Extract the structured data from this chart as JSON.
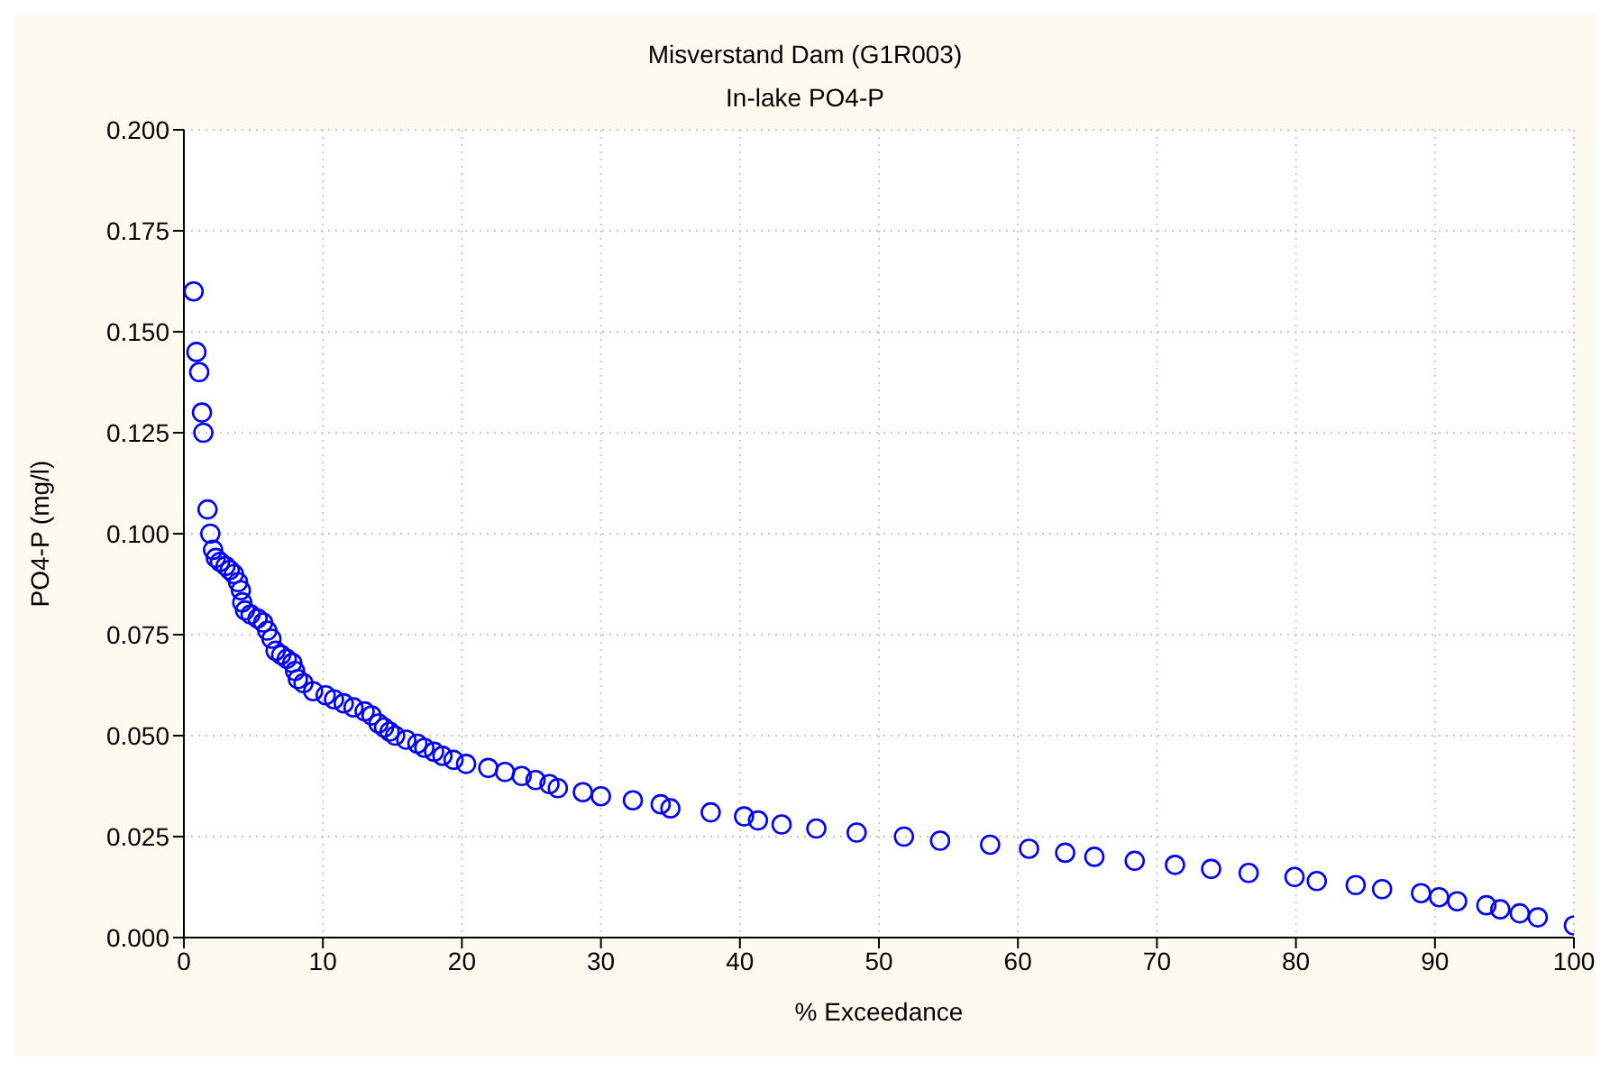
{
  "chart_data": {
    "type": "scatter",
    "title": "Misverstand Dam (G1R003)",
    "subtitle": "In-lake PO4-P",
    "xlabel": "% Exceedance",
    "ylabel": "PO4-P (mg/l)",
    "xlim": [
      0,
      100
    ],
    "xticks": [
      0,
      10,
      20,
      30,
      40,
      50,
      60,
      70,
      80,
      90,
      100
    ],
    "ylim": [
      0,
      0.2
    ],
    "yticks": [
      {
        "value": 0,
        "label": "0.000"
      },
      {
        "value": 0.025,
        "label": "0.025"
      },
      {
        "value": 0.05,
        "label": "0.050"
      },
      {
        "value": 0.075,
        "label": "0.075"
      },
      {
        "value": 0.1,
        "label": "0.100"
      },
      {
        "value": 0.125,
        "label": "0.125"
      },
      {
        "value": 0.15,
        "label": "0.150"
      },
      {
        "value": 0.175,
        "label": "0.175"
      },
      {
        "value": 0.2,
        "label": "0.200"
      }
    ],
    "grid": true,
    "marker": "circle",
    "series": [
      {
        "color": "#0000ff",
        "x": [
          0.7,
          0.9,
          1.1,
          1.3,
          1.4,
          1.7,
          1.9,
          2.1,
          2.3,
          2.6,
          3.0,
          3.3,
          3.6,
          3.9,
          4.1,
          4.2,
          4.4,
          4.8,
          5.3,
          5.7,
          6.0,
          6.3,
          6.6,
          7.0,
          7.4,
          7.8,
          8.0,
          8.2,
          8.6,
          9.3,
          10.2,
          10.8,
          11.5,
          12.2,
          13.0,
          13.5,
          14.0,
          14.4,
          14.8,
          15.2,
          16.0,
          16.8,
          17.3,
          18.0,
          18.6,
          19.4,
          20.3,
          21.9,
          23.1,
          24.3,
          25.3,
          26.3,
          26.9,
          28.7,
          30.0,
          32.3,
          34.3,
          35.0,
          37.9,
          40.3,
          41.3,
          43.0,
          45.5,
          48.4,
          51.8,
          54.4,
          58.0,
          60.8,
          63.4,
          65.5,
          68.4,
          71.3,
          73.9,
          76.6,
          79.9,
          81.5,
          84.3,
          86.2,
          89.0,
          90.3,
          91.6,
          93.7,
          94.7,
          96.1,
          97.4,
          100
        ],
        "values": [
          0.16,
          0.145,
          0.14,
          0.13,
          0.125,
          0.106,
          0.1,
          0.096,
          0.094,
          0.093,
          0.092,
          0.091,
          0.09,
          0.088,
          0.086,
          0.083,
          0.081,
          0.08,
          0.079,
          0.078,
          0.076,
          0.074,
          0.071,
          0.07,
          0.069,
          0.068,
          0.066,
          0.064,
          0.063,
          0.061,
          0.06,
          0.059,
          0.058,
          0.057,
          0.056,
          0.055,
          0.053,
          0.052,
          0.051,
          0.05,
          0.049,
          0.048,
          0.047,
          0.046,
          0.045,
          0.044,
          0.043,
          0.042,
          0.041,
          0.04,
          0.039,
          0.038,
          0.037,
          0.036,
          0.035,
          0.034,
          0.033,
          0.032,
          0.031,
          0.03,
          0.029,
          0.028,
          0.027,
          0.026,
          0.025,
          0.024,
          0.023,
          0.022,
          0.021,
          0.02,
          0.019,
          0.018,
          0.017,
          0.016,
          0.015,
          0.014,
          0.013,
          0.012,
          0.011,
          0.01,
          0.009,
          0.008,
          0.007,
          0.006,
          0.005,
          0.003
        ]
      }
    ]
  }
}
